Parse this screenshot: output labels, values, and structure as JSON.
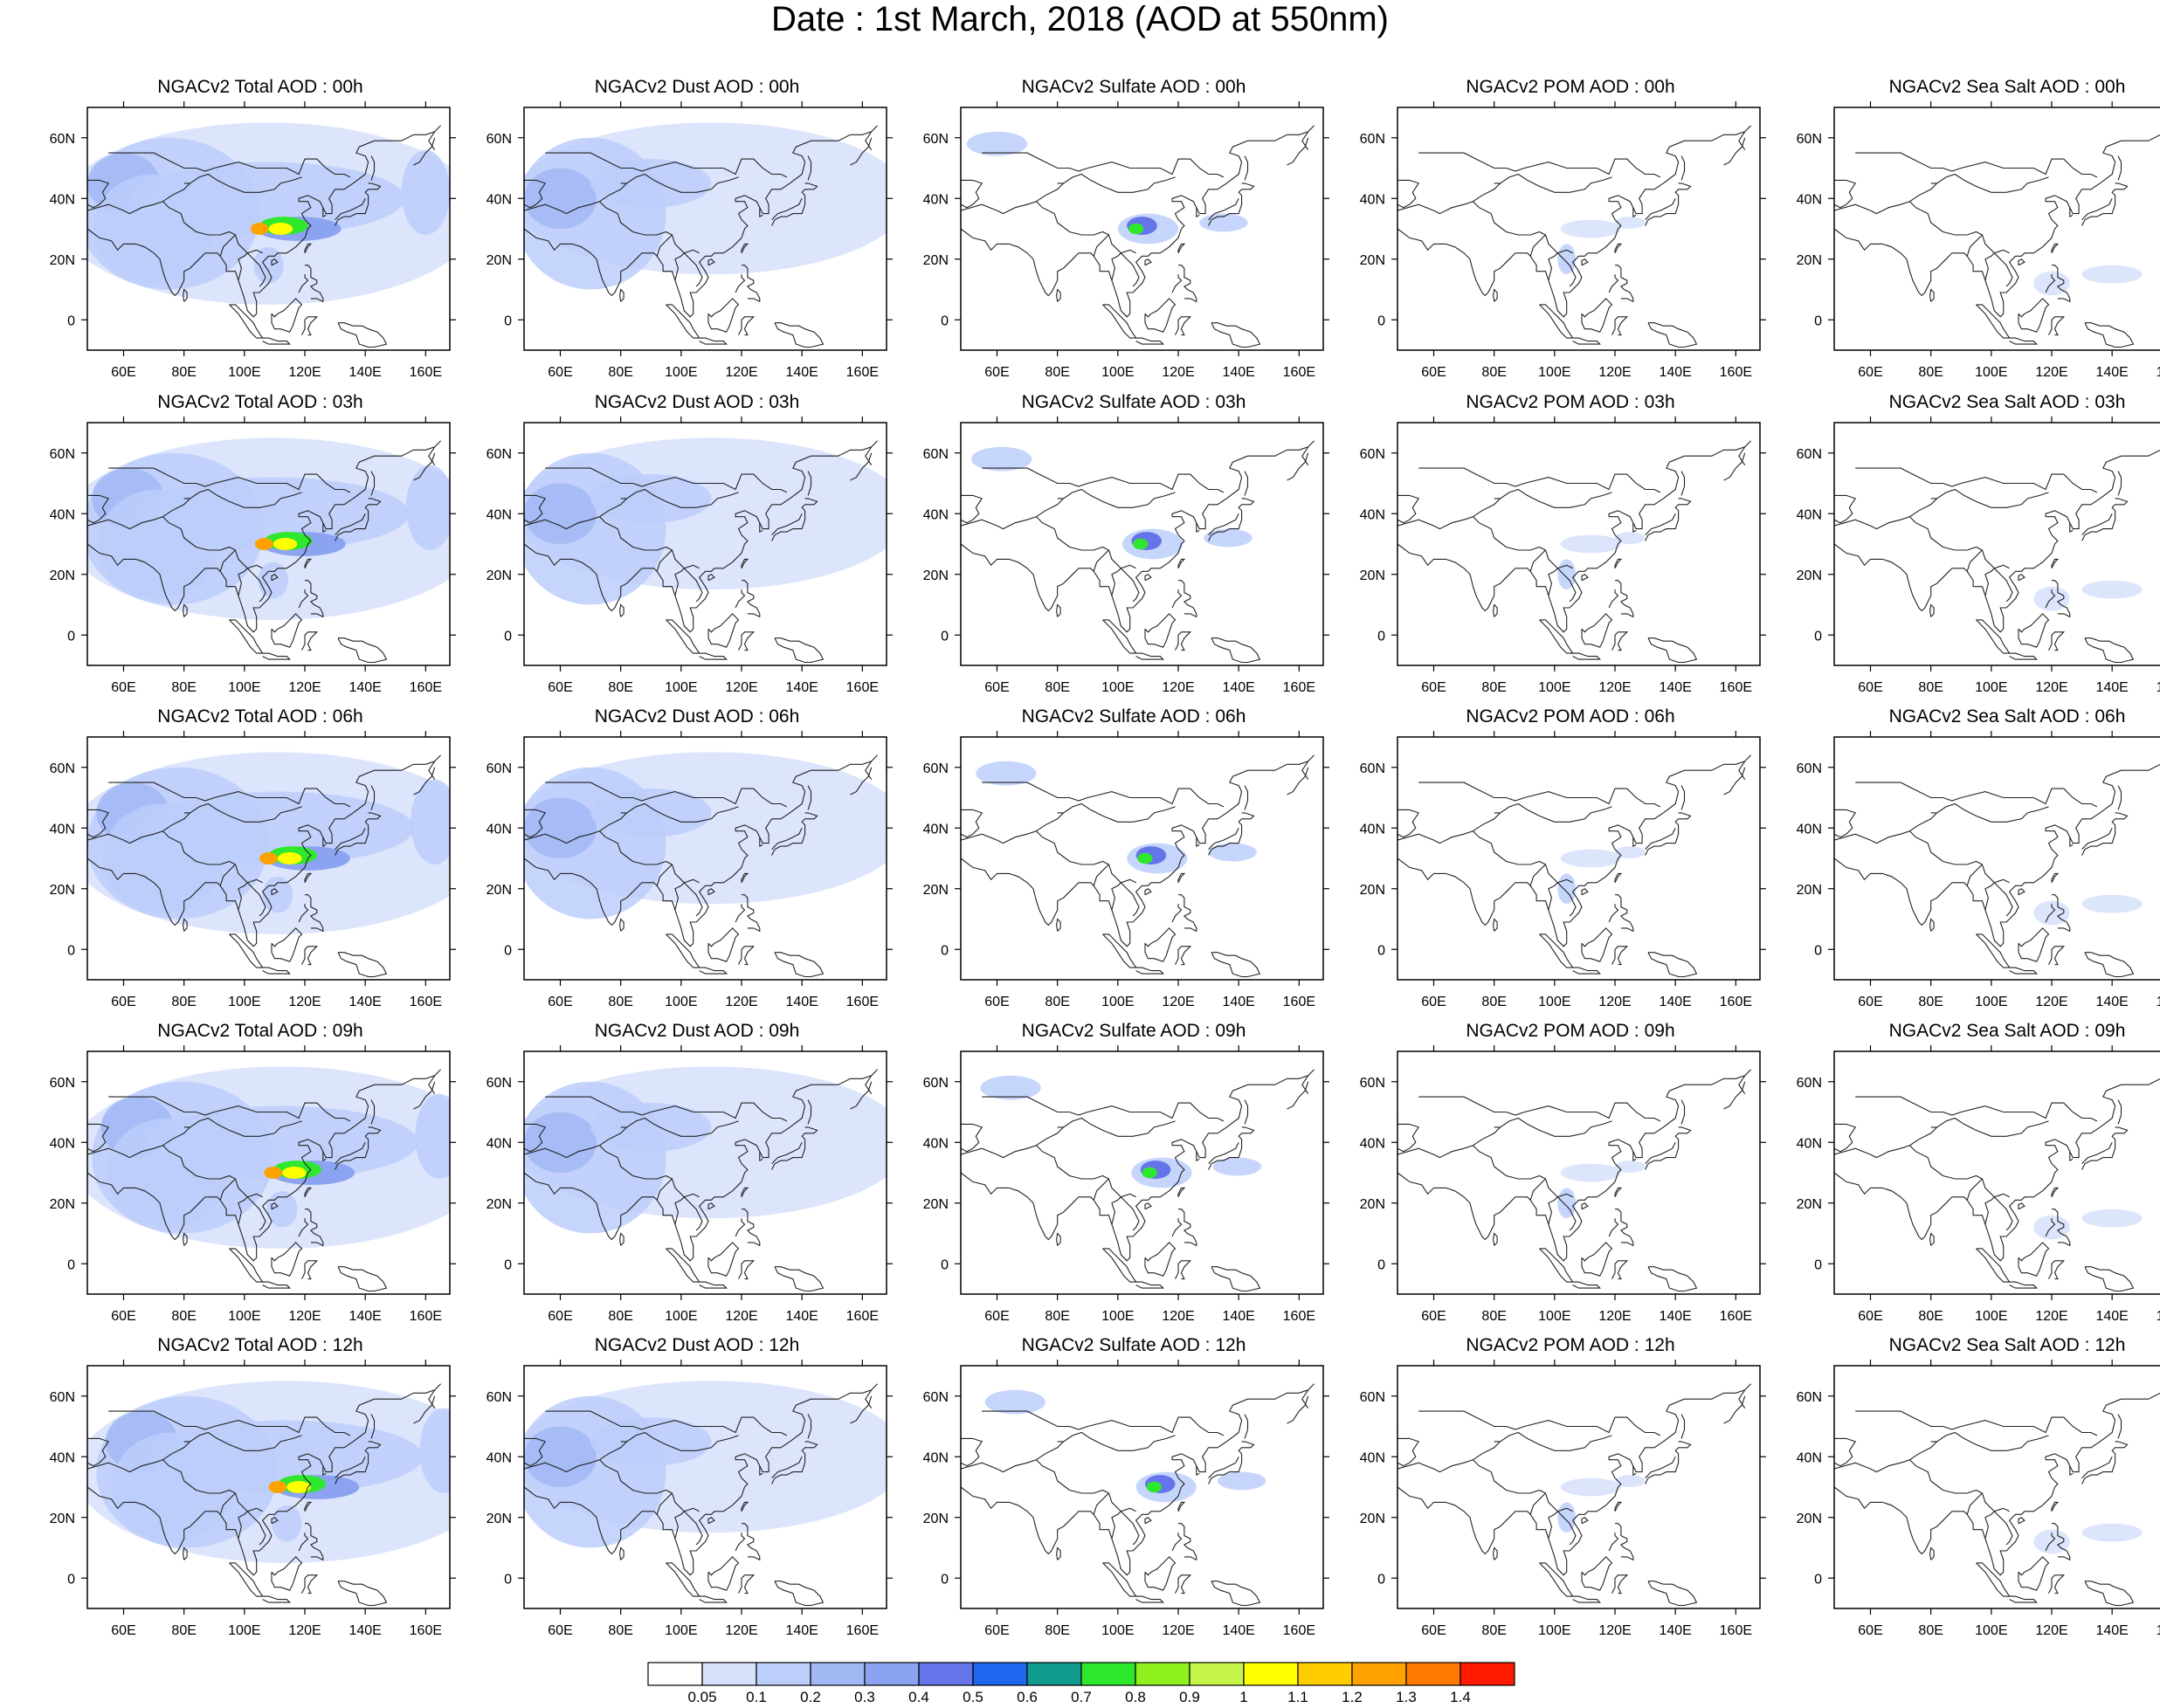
{
  "title": "Date : 1st March, 2018 (AOD at 550nm)",
  "panel_titles": [
    [
      "NGACv2 Total AOD : 00h",
      "NGACv2 Dust AOD : 00h",
      "NGACv2 Sulfate AOD : 00h",
      "NGACv2 POM AOD : 00h",
      "NGACv2 Sea Salt AOD : 00h"
    ],
    [
      "NGACv2 Total AOD : 03h",
      "NGACv2 Dust AOD : 03h",
      "NGACv2 Sulfate AOD : 03h",
      "NGACv2 POM AOD : 03h",
      "NGACv2 Sea Salt AOD : 03h"
    ],
    [
      "NGACv2 Total AOD : 06h",
      "NGACv2 Dust AOD : 06h",
      "NGACv2 Sulfate AOD : 06h",
      "NGACv2 POM AOD : 06h",
      "NGACv2 Sea Salt AOD : 06h"
    ],
    [
      "NGACv2 Total AOD : 09h",
      "NGACv2 Dust AOD : 09h",
      "NGACv2 Sulfate AOD : 09h",
      "NGACv2 POM AOD : 09h",
      "NGACv2 Sea Salt  AOD : 09h"
    ],
    [
      "NGACv2 Total AOD  : 12h",
      "NGACv2 Dust AOD : 12h",
      "NGACv2 Sulfate AOD : 12h",
      "NGACv2 POM  AOD : 12h",
      "NGACv2 Sea Salt  AOD : 12h"
    ]
  ],
  "map": {
    "lon_range": [
      48,
      168
    ],
    "lat_range": [
      -10,
      70
    ],
    "lon_tick_labels": [
      "60E",
      "80E",
      "100E",
      "120E",
      "140E",
      "160E"
    ],
    "lat_tick_labels": [
      "0",
      "20N",
      "40N",
      "60N"
    ]
  },
  "colorbar": {
    "labels": [
      "0.05",
      "0.1",
      "0.2",
      "0.3",
      "0.4",
      "0.5",
      "0.6",
      "0.7",
      "0.8",
      "0.9",
      "1",
      "1.1",
      "1.2",
      "1.3",
      "1.4"
    ],
    "colors": [
      "#ffffff",
      "#d6e1fb",
      "#bccefa",
      "#a2b8f5",
      "#8ba3f0",
      "#6574e8",
      "#1d66ee",
      "#0f9b8e",
      "#2ee82e",
      "#8ef01c",
      "#c6f54a",
      "#ffff00",
      "#ffcc00",
      "#ffa200",
      "#ff7a00",
      "#ff1a00"
    ]
  },
  "icons": {
    "coastline": "coastline-outline",
    "land_boundary": "country-border-outline"
  }
}
